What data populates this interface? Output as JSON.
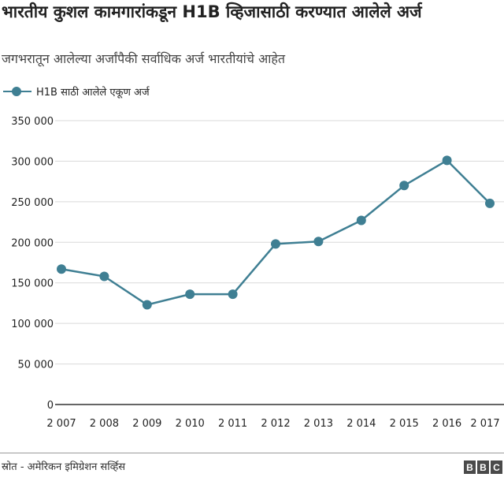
{
  "title": "भारतीय कुशल कामगारांकडून H1B व्हिजासाठी करण्यात आलेले अर्ज",
  "subtitle": "जगभरातून आलेल्या अर्जांपैकी सर्वाधिक अर्ज भारतीयांचे आहेत",
  "source": "स्रोत - अमेरिकन इमिग्रेशन सर्व्हिस",
  "logo": "BBC",
  "colors": {
    "series": "#3f7f93",
    "grid": "#d9d9d9",
    "axis": "#333333"
  },
  "chart_data": {
    "type": "line",
    "x": [
      "2 007",
      "2 008",
      "2 009",
      "2 010",
      "2 011",
      "2 012",
      "2 013",
      "2 014",
      "2 015",
      "2 016",
      "2 017"
    ],
    "series": [
      {
        "name": "H1B साठी आलेले एकूण अर्ज",
        "values": [
          167000,
          158000,
          123000,
          136000,
          136000,
          198000,
          201000,
          227000,
          270000,
          301000,
          248000
        ]
      }
    ],
    "yticks": [
      "0",
      "50 000",
      "100 000",
      "150 000",
      "200 000",
      "250 000",
      "300 000",
      "350 000"
    ],
    "ylim": [
      0,
      350000
    ],
    "grid": true,
    "legend": "top-left"
  }
}
